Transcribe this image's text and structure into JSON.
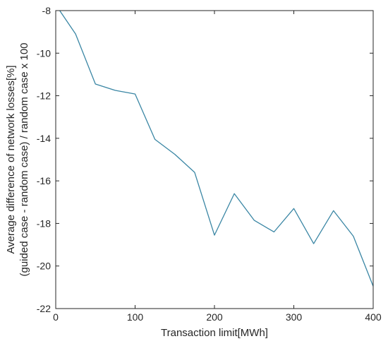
{
  "chart_data": {
    "type": "line",
    "title": "",
    "xlabel": "Transaction limit[MWh]",
    "ylabel_lines": [
      "Average difference of network losses[%]",
      "(guided case - random case) / random case x 100"
    ],
    "xlim": [
      0,
      400
    ],
    "ylim": [
      -22,
      -8
    ],
    "xticks": [
      0,
      100,
      200,
      300,
      400
    ],
    "yticks": [
      -22,
      -20,
      -18,
      -16,
      -14,
      -12,
      -10,
      -8
    ],
    "grid": false,
    "line_color": "#3a86a4",
    "series": [
      {
        "x": [
          5,
          25,
          50,
          75,
          100,
          125,
          150,
          175,
          200,
          225,
          250,
          275,
          300,
          325,
          350,
          375,
          400
        ],
        "y": [
          -8.0,
          -9.1,
          -11.45,
          -11.75,
          -11.92,
          -14.05,
          -14.75,
          -15.6,
          -18.55,
          -16.6,
          -17.85,
          -18.4,
          -17.3,
          -18.95,
          -17.4,
          -18.6,
          -20.95
        ]
      }
    ]
  }
}
